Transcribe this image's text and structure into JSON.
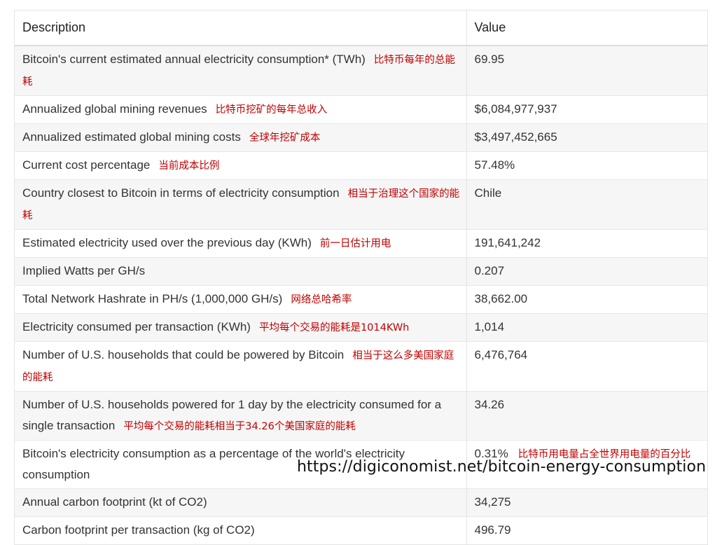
{
  "table": {
    "headers": {
      "description": "Description",
      "value": "Value"
    },
    "rows": [
      {
        "description": "Bitcoin's current estimated annual electricity consumption* (TWh)",
        "note": "比特币每年的总能耗",
        "value": "69.95"
      },
      {
        "description": "Annualized global mining revenues",
        "note": "比特币挖矿的每年总收入",
        "value": "$6,084,977,937"
      },
      {
        "description": "Annualized estimated global mining costs",
        "note": "全球年挖矿成本",
        "value": "$3,497,452,665"
      },
      {
        "description": "Current cost percentage",
        "note": "当前成本比例",
        "value": "57.48%"
      },
      {
        "description": "Country closest to Bitcoin in terms of electricity consumption",
        "note": "相当于治理这个国家的能耗",
        "value": "Chile"
      },
      {
        "description": "Estimated electricity used over the previous day (KWh)",
        "note": "前一日估计用电",
        "value": "191,641,242"
      },
      {
        "description": "Implied Watts per GH/s",
        "note": "",
        "value": "0.207"
      },
      {
        "description": "Total Network Hashrate in PH/s (1,000,000 GH/s)",
        "note": "网络总哈希率",
        "value": "38,662.00"
      },
      {
        "description": "Electricity consumed per transaction (KWh)",
        "note": "平均每个交易的能耗是1014KWh",
        "value": "1,014"
      },
      {
        "description": "Number of U.S. households that could be powered by Bitcoin",
        "note": "相当于这么多美国家庭的能耗",
        "value": "6,476,764"
      },
      {
        "description": "Number of U.S. households powered for 1 day by the electricity consumed for a single transaction",
        "note": "平均每个交易的能耗相当于34.26个美国家庭的能耗",
        "value": "34.26"
      },
      {
        "description": "Bitcoin's electricity consumption as a percentage of the world's electricity consumption",
        "note": "",
        "value": "0.31%",
        "value_note": "比特币用电量占全世界用电量的百分比"
      },
      {
        "description": "Annual carbon footprint (kt of CO2)",
        "note": "",
        "value": "34,275"
      },
      {
        "description": "Carbon footprint per transaction (kg of CO2)",
        "note": "",
        "value": "496.79"
      }
    ]
  },
  "source": {
    "url": "https://digiconomist.net/bitcoin-energy-consumption"
  }
}
